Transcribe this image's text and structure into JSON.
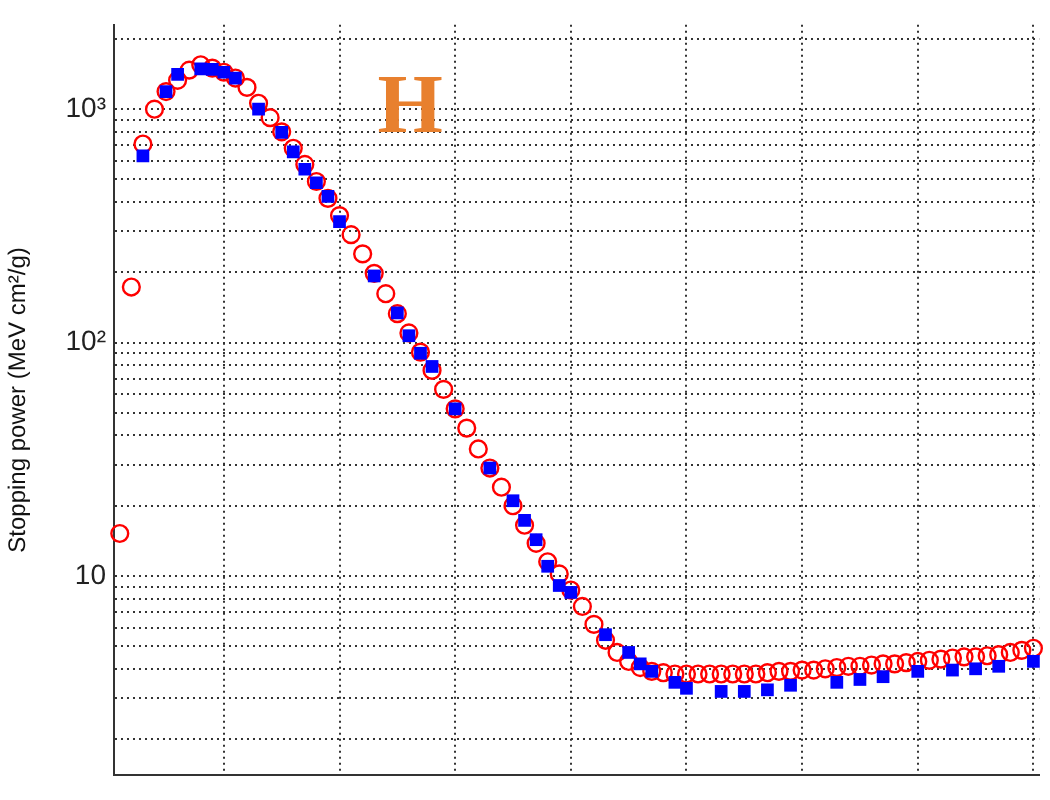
{
  "chart_data": {
    "type": "scatter",
    "ylabel": "Stopping power (MeV cm²/g)",
    "annotations": [
      "H"
    ],
    "categories": [
      null,
      null,
      null,
      null,
      null,
      null,
      null,
      null,
      null,
      null,
      null,
      null,
      null,
      null,
      null,
      null,
      null,
      null,
      null,
      null,
      null,
      null,
      null,
      null,
      null,
      null,
      null,
      null,
      null,
      null,
      null,
      null,
      null,
      null,
      null,
      null,
      null,
      null,
      null,
      null,
      null,
      null,
      null,
      null,
      null,
      null,
      null,
      null,
      null,
      null,
      null,
      null,
      null,
      null,
      null,
      null,
      null,
      null,
      null,
      null,
      null,
      null,
      null,
      null,
      null,
      null,
      null,
      null,
      null,
      null,
      null,
      null,
      null,
      null,
      null,
      null,
      null,
      null,
      null,
      null
    ],
    "series": [
      {
        "color": "#ff0000",
        "marker": "circle",
        "values": [
          15.2,
          173,
          709,
          1000,
          1190,
          1330,
          1470,
          1550,
          1500,
          1440,
          1360,
          1240,
          1060,
          920,
          800,
          680,
          580,
          490,
          415,
          350,
          290,
          240,
          198,
          162,
          133,
          110,
          91,
          76,
          63,
          52,
          43,
          35,
          29,
          24,
          20,
          16.5,
          13.8,
          11.5,
          10.2,
          8.7,
          7.4,
          6.2,
          5.3,
          4.7,
          4.3,
          4.05,
          3.9,
          3.85,
          3.8,
          3.8,
          3.8,
          3.8,
          3.8,
          3.8,
          3.8,
          3.8,
          3.85,
          3.9,
          3.9,
          3.95,
          3.95,
          4.0,
          4.05,
          4.1,
          4.1,
          4.15,
          4.2,
          4.2,
          4.25,
          4.3,
          4.35,
          4.4,
          4.45,
          4.5,
          4.5,
          4.55,
          4.6,
          4.7,
          4.8,
          4.9
        ]
      },
      {
        "color": "#0000ff",
        "marker": "square",
        "values": [
          null,
          null,
          631,
          null,
          1190,
          1410,
          null,
          1490,
          1480,
          1440,
          1360,
          null,
          1000,
          null,
          795,
          656,
          553,
          484,
          423,
          330,
          null,
          null,
          193,
          null,
          134,
          107,
          90,
          79,
          null,
          52,
          null,
          null,
          29,
          null,
          21,
          17.3,
          14.3,
          11,
          9.1,
          8.5,
          null,
          null,
          5.6,
          null,
          4.7,
          4.2,
          3.9,
          null,
          3.5,
          3.3,
          null,
          null,
          3.2,
          null,
          3.2,
          null,
          3.25,
          null,
          3.4,
          null,
          null,
          null,
          3.5,
          null,
          3.6,
          null,
          3.7,
          null,
          null,
          3.9,
          null,
          null,
          3.95,
          null,
          4.0,
          null,
          4.1,
          null,
          null,
          4.3
        ]
      }
    ],
    "log": "y",
    "ylim": [
      1.4,
      2300
    ],
    "yticks": [
      {
        "value": 2,
        "label": null
      },
      {
        "value": 3,
        "label": null
      },
      {
        "value": 4,
        "label": null
      },
      {
        "value": 5,
        "label": null
      },
      {
        "value": 6,
        "label": null
      },
      {
        "value": 7,
        "label": null
      },
      {
        "value": 8,
        "label": null
      },
      {
        "value": 9,
        "label": null
      },
      10,
      {
        "value": 20,
        "label": null
      },
      {
        "value": 30,
        "label": null
      },
      {
        "value": 40,
        "label": null
      },
      {
        "value": 50,
        "label": null
      },
      {
        "value": 60,
        "label": null
      },
      {
        "value": 70,
        "label": null
      },
      {
        "value": 80,
        "label": null
      },
      {
        "value": 90,
        "label": null
      },
      {
        "value": 100,
        "label": "10²"
      },
      {
        "value": 200,
        "label": null
      },
      {
        "value": 300,
        "label": null
      },
      {
        "value": 400,
        "label": null
      },
      {
        "value": 500,
        "label": null
      },
      {
        "value": 600,
        "label": null
      },
      {
        "value": 700,
        "label": null
      },
      {
        "value": 800,
        "label": null
      },
      {
        "value": 900,
        "label": null
      },
      {
        "value": 1000,
        "label": "10³"
      },
      {
        "value": 2000,
        "label": null
      }
    ],
    "grid": true,
    "tick_labels": "y",
    "legend": false
  }
}
